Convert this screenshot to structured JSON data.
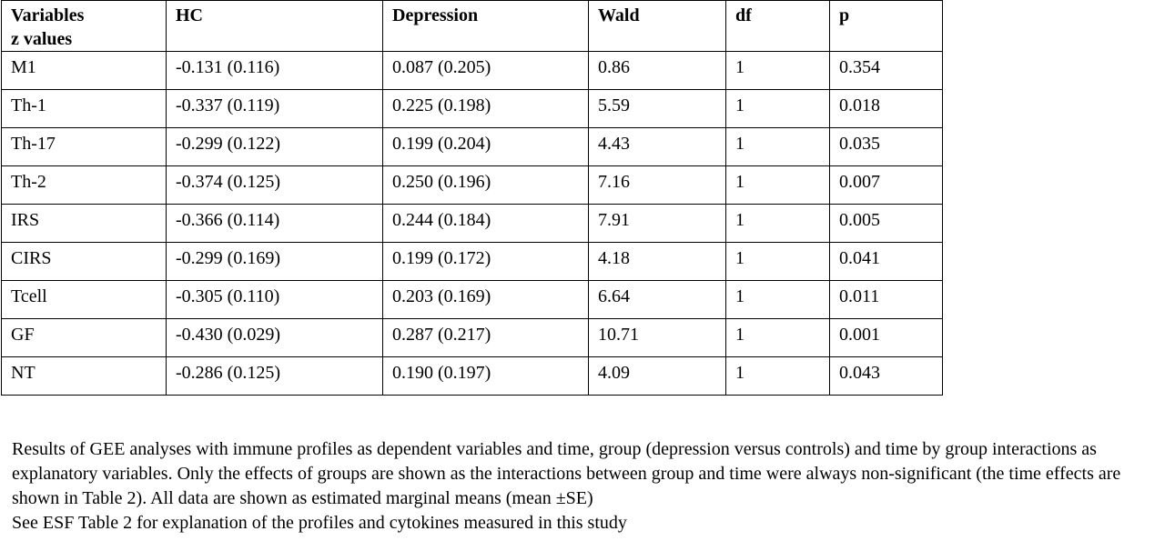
{
  "table": {
    "headers": [
      {
        "line1": "Variables",
        "line2": "z values"
      },
      {
        "line1": "HC",
        "line2": ""
      },
      {
        "line1": "Depression",
        "line2": ""
      },
      {
        "line1": "Wald",
        "line2": ""
      },
      {
        "line1": "df",
        "line2": ""
      },
      {
        "line1": "p",
        "line2": ""
      }
    ],
    "rows": [
      [
        "M1",
        "-0.131 (0.116)",
        "0.087 (0.205)",
        "0.86",
        "1",
        "0.354"
      ],
      [
        "Th-1",
        "-0.337 (0.119)",
        "0.225 (0.198)",
        "5.59",
        "1",
        "0.018"
      ],
      [
        "Th-17",
        "-0.299 (0.122)",
        "0.199 (0.204)",
        "4.43",
        "1",
        "0.035"
      ],
      [
        "Th-2",
        "-0.374 (0.125)",
        "0.250 (0.196)",
        "7.16",
        "1",
        "0.007"
      ],
      [
        "IRS",
        "-0.366 (0.114)",
        "0.244 (0.184)",
        "7.91",
        "1",
        "0.005"
      ],
      [
        "CIRS",
        "-0.299 (0.169)",
        "0.199 (0.172)",
        "4.18",
        "1",
        "0.041"
      ],
      [
        "Tcell",
        "-0.305 (0.110)",
        "0.203 (0.169)",
        "6.64",
        "1",
        "0.011"
      ],
      [
        "GF",
        "-0.430 (0.029)",
        "0.287 (0.217)",
        "10.71",
        "1",
        "0.001"
      ],
      [
        "NT",
        "-0.286 (0.125)",
        "0.190 (0.197)",
        "4.09",
        "1",
        "0.043"
      ]
    ]
  },
  "caption": {
    "paragraph1": "Results of GEE analyses with immune profiles as dependent variables and time, group (depression versus controls) and time by group interactions as explanatory variables. Only the effects of groups are shown as the interactions between group and time were always non-significant (the time effects are shown in Table 2). All data are shown as estimated marginal means (mean ±SE)",
    "paragraph2": "See ESF Table 2 for explanation of the profiles and cytokines measured in this study"
  }
}
